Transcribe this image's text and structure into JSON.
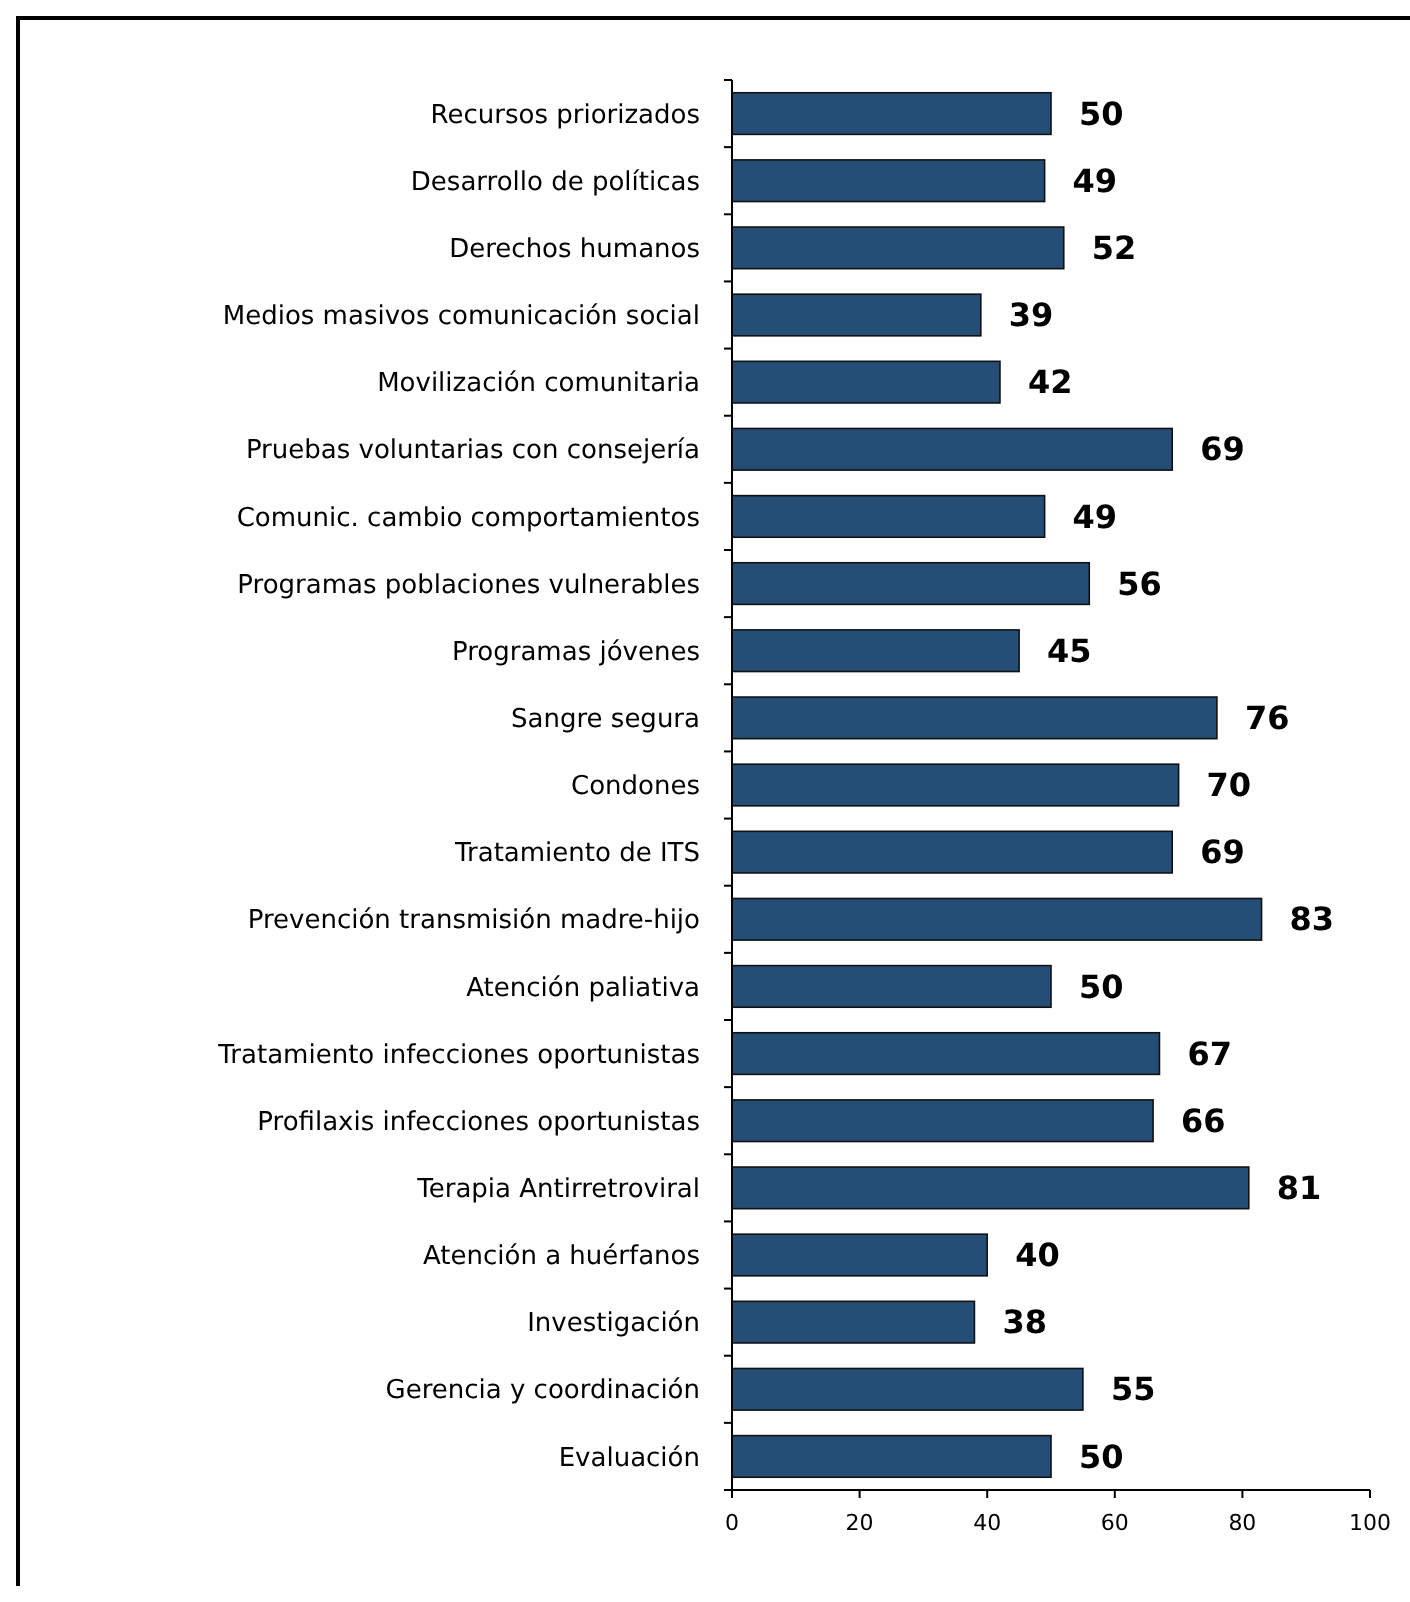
{
  "chart_data": {
    "type": "bar",
    "orientation": "horizontal",
    "categories": [
      "Recursos priorizados",
      "Desarrollo de políticas",
      "Derechos humanos",
      "Medios masivos comunicación social",
      "Movilización comunitaria",
      "Pruebas voluntarias con consejería",
      "Comunic. cambio comportamientos",
      "Programas poblaciones vulnerables",
      "Programas  jóvenes",
      "Sangre segura",
      "Condones",
      "Tratamiento de ITS",
      "Prevención transmisión madre-hijo",
      "Atención paliativa",
      "Tratamiento infecciones oportunistas",
      "Profilaxis infecciones oportunistas",
      "Terapia Antirretroviral",
      "Atención a huérfanos",
      "Investigación",
      "Gerencia y coordinación",
      "Evaluación"
    ],
    "values": [
      50,
      49,
      52,
      39,
      42,
      69,
      49,
      56,
      45,
      76,
      70,
      69,
      83,
      50,
      67,
      66,
      81,
      40,
      38,
      55,
      50
    ],
    "color": "#254e77",
    "xlim": [
      0,
      100
    ],
    "xticks": [
      0,
      20,
      40,
      60,
      80,
      100
    ],
    "data_labels": true,
    "grid": false
  }
}
